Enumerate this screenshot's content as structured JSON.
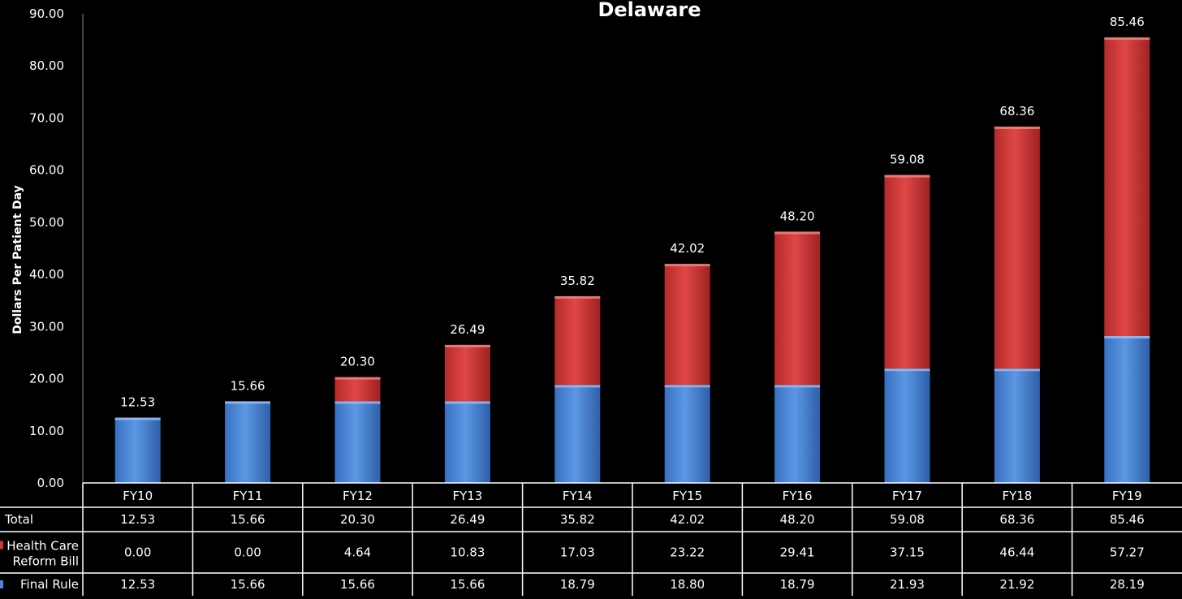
{
  "chart_data": {
    "type": "bar",
    "stacked": true,
    "title": "Delaware",
    "ylabel": "Dollars Per Patient Day",
    "xlabel": "",
    "ylim": [
      0,
      90
    ],
    "yticks": [
      "0.00",
      "10.00",
      "20.00",
      "30.00",
      "40.00",
      "50.00",
      "60.00",
      "70.00",
      "80.00",
      "90.00"
    ],
    "categories": [
      "FY10",
      "FY11",
      "FY12",
      "FY13",
      "FY14",
      "FY15",
      "FY16",
      "FY17",
      "FY18",
      "FY19"
    ],
    "series": [
      {
        "name": "Final Rule",
        "color": "#4a86d8",
        "values": [
          12.53,
          15.66,
          15.66,
          15.66,
          18.79,
          18.8,
          18.79,
          21.93,
          21.92,
          28.19
        ],
        "labels": [
          "12.53",
          "15.66",
          "15.66",
          "15.66",
          "18.79",
          "18.80",
          "18.79",
          "21.93",
          "21.92",
          "28.19"
        ]
      },
      {
        "name": "Health Care Reform Bill",
        "color": "#d23a3a",
        "values": [
          0.0,
          0.0,
          4.64,
          10.83,
          17.03,
          23.22,
          29.41,
          37.15,
          46.44,
          57.27
        ],
        "labels": [
          "0.00",
          "0.00",
          "4.64",
          "10.83",
          "17.03",
          "23.22",
          "29.41",
          "37.15",
          "46.44",
          "57.27"
        ]
      }
    ],
    "totals": {
      "name": "Total",
      "values": [
        12.53,
        15.66,
        20.3,
        26.49,
        35.82,
        42.02,
        48.2,
        59.08,
        68.36,
        85.46
      ],
      "labels": [
        "12.53",
        "15.66",
        "20.30",
        "26.49",
        "35.82",
        "42.02",
        "48.20",
        "59.08",
        "68.36",
        "85.46"
      ]
    },
    "table_rows": [
      {
        "key": "total",
        "label_lines": [
          "Total"
        ]
      },
      {
        "key": "hcr",
        "label_lines": [
          "Health Care",
          "Reform Bill"
        ],
        "color": "#d23a3a"
      },
      {
        "key": "final",
        "label_lines": [
          "Final Rule"
        ],
        "color": "#4a86d8"
      }
    ],
    "grid": false,
    "legend": "data-table"
  }
}
